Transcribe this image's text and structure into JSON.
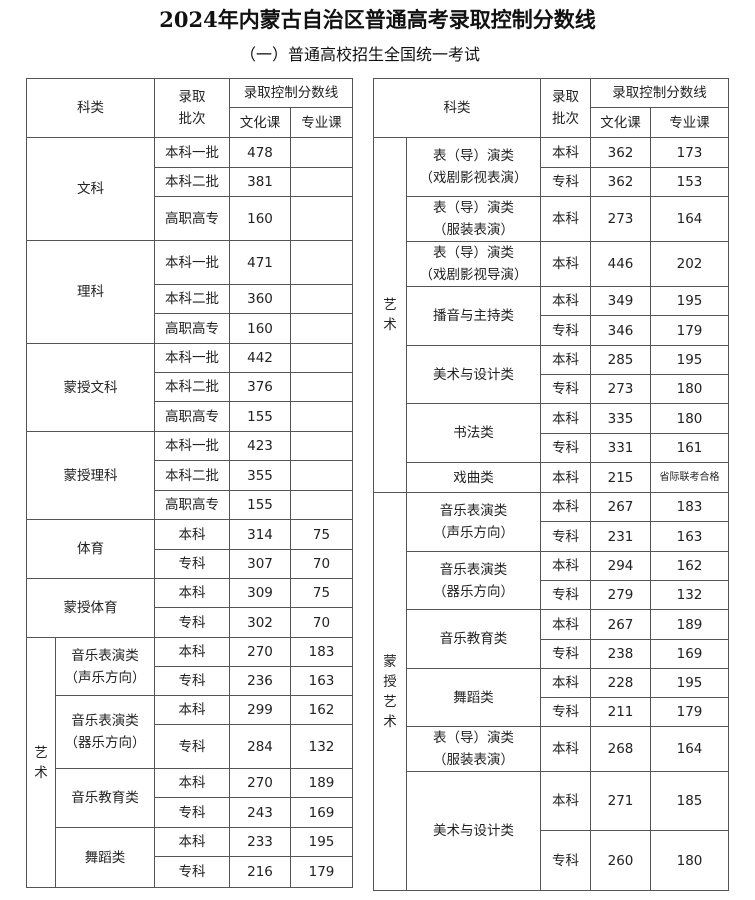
{
  "title": "2024年内蒙古自治区普通高考录取控制分数线",
  "subtitle": "（一）普通高校招生全国统一考试",
  "headers": {
    "category": "科类",
    "batch": "录取\n批次",
    "score_line": "录取控制分数线",
    "culture": "文化课",
    "major": "专业课"
  },
  "left_table": [
    {
      "category": "文科",
      "rows": [
        {
          "batch": "本科一批",
          "culture": "478",
          "major": ""
        },
        {
          "batch": "本科二批",
          "culture": "381",
          "major": ""
        },
        {
          "batch": "高职高专",
          "culture": "160",
          "major": ""
        }
      ]
    },
    {
      "category": "理科",
      "rows": [
        {
          "batch": "本科一批",
          "culture": "471",
          "major": ""
        },
        {
          "batch": "本科二批",
          "culture": "360",
          "major": ""
        },
        {
          "batch": "高职高专",
          "culture": "160",
          "major": ""
        }
      ]
    },
    {
      "category": "蒙授文科",
      "rows": [
        {
          "batch": "本科一批",
          "culture": "442",
          "major": ""
        },
        {
          "batch": "本科二批",
          "culture": "376",
          "major": ""
        },
        {
          "batch": "高职高专",
          "culture": "155",
          "major": ""
        }
      ]
    },
    {
      "category": "蒙授理科",
      "rows": [
        {
          "batch": "本科一批",
          "culture": "423",
          "major": ""
        },
        {
          "batch": "本科二批",
          "culture": "355",
          "major": ""
        },
        {
          "batch": "高职高专",
          "culture": "155",
          "major": ""
        }
      ]
    },
    {
      "category": "体育",
      "rows": [
        {
          "batch": "本科",
          "culture": "314",
          "major": "75"
        },
        {
          "batch": "专科",
          "culture": "307",
          "major": "70"
        }
      ]
    },
    {
      "category": "蒙授体育",
      "rows": [
        {
          "batch": "本科",
          "culture": "309",
          "major": "75"
        },
        {
          "batch": "专科",
          "culture": "302",
          "major": "70"
        }
      ]
    },
    {
      "category": "艺术",
      "subcategories": [
        {
          "name": "音乐表演类\n（声乐方向）",
          "rows": [
            {
              "batch": "本科",
              "culture": "270",
              "major": "183"
            },
            {
              "batch": "专科",
              "culture": "236",
              "major": "163"
            }
          ]
        },
        {
          "name": "音乐表演类\n（器乐方向）",
          "rows": [
            {
              "batch": "本科",
              "culture": "299",
              "major": "162"
            },
            {
              "batch": "专科",
              "culture": "284",
              "major": "132"
            }
          ]
        },
        {
          "name": "音乐教育类",
          "rows": [
            {
              "batch": "本科",
              "culture": "270",
              "major": "189"
            },
            {
              "batch": "专科",
              "culture": "243",
              "major": "169"
            }
          ]
        },
        {
          "name": "舞蹈类",
          "rows": [
            {
              "batch": "本科",
              "culture": "233",
              "major": "195"
            },
            {
              "batch": "专科",
              "culture": "216",
              "major": "179"
            }
          ]
        }
      ]
    }
  ],
  "right_table": [
    {
      "category": "艺术",
      "subcategories": [
        {
          "name": "表（导）演类\n（戏剧影视表演）",
          "rows": [
            {
              "batch": "本科",
              "culture": "362",
              "major": "173"
            },
            {
              "batch": "专科",
              "culture": "362",
              "major": "153"
            }
          ]
        },
        {
          "name": "表（导）演类\n（服装表演）",
          "rows": [
            {
              "batch": "本科",
              "culture": "273",
              "major": "164"
            }
          ]
        },
        {
          "name": "表（导）演类\n（戏剧影视导演）",
          "rows": [
            {
              "batch": "本科",
              "culture": "446",
              "major": "202"
            }
          ]
        },
        {
          "name": "播音与主持类",
          "rows": [
            {
              "batch": "本科",
              "culture": "349",
              "major": "195"
            },
            {
              "batch": "专科",
              "culture": "346",
              "major": "179"
            }
          ]
        },
        {
          "name": "美术与设计类",
          "rows": [
            {
              "batch": "本科",
              "culture": "285",
              "major": "195"
            },
            {
              "batch": "专科",
              "culture": "273",
              "major": "180"
            }
          ]
        },
        {
          "name": "书法类",
          "rows": [
            {
              "batch": "本科",
              "culture": "335",
              "major": "180"
            },
            {
              "batch": "专科",
              "culture": "331",
              "major": "161"
            }
          ]
        },
        {
          "name": "戏曲类",
          "rows": [
            {
              "batch": "本科",
              "culture": "215",
              "major": "省际联考合格"
            }
          ]
        }
      ]
    },
    {
      "category": "蒙授艺术",
      "subcategories": [
        {
          "name": "音乐表演类\n（声乐方向）",
          "rows": [
            {
              "batch": "本科",
              "culture": "267",
              "major": "183"
            },
            {
              "batch": "专科",
              "culture": "231",
              "major": "163"
            }
          ]
        },
        {
          "name": "音乐表演类\n（器乐方向）",
          "rows": [
            {
              "batch": "本科",
              "culture": "294",
              "major": "162"
            },
            {
              "batch": "专科",
              "culture": "279",
              "major": "132"
            }
          ]
        },
        {
          "name": "音乐教育类",
          "rows": [
            {
              "batch": "本科",
              "culture": "267",
              "major": "189"
            },
            {
              "batch": "专科",
              "culture": "238",
              "major": "169"
            }
          ]
        },
        {
          "name": "舞蹈类",
          "rows": [
            {
              "batch": "本科",
              "culture": "228",
              "major": "195"
            },
            {
              "batch": "专科",
              "culture": "211",
              "major": "179"
            }
          ]
        },
        {
          "name": "表（导）演类\n（服装表演）",
          "rows": [
            {
              "batch": "本科",
              "culture": "268",
              "major": "164"
            }
          ]
        },
        {
          "name": "美术与设计类",
          "rows": [
            {
              "batch": "本科",
              "culture": "271",
              "major": "185"
            },
            {
              "batch": "专科",
              "culture": "260",
              "major": "180"
            }
          ]
        }
      ]
    }
  ]
}
